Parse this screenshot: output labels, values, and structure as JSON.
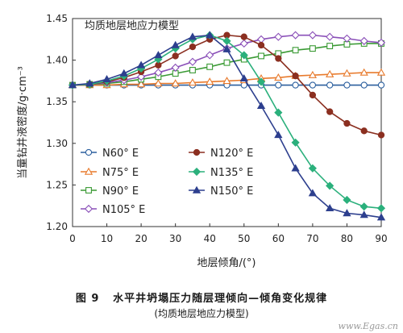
{
  "chart_data": {
    "type": "line",
    "title": "均质地层地应力模型",
    "xlabel": "地层倾角/(°)",
    "ylabel": "当量钻井液密度/g·cm⁻³",
    "xlim": [
      0,
      90
    ],
    "ylim": [
      1.2,
      1.45
    ],
    "xticks": [
      0,
      10,
      20,
      30,
      40,
      50,
      60,
      70,
      80,
      90
    ],
    "yticks": [
      1.2,
      1.25,
      1.3,
      1.35,
      1.4,
      1.45
    ],
    "ytick_labels": [
      "1.20",
      "1.25",
      "1.30",
      "1.35",
      "1.40",
      "1.45"
    ],
    "grid": false,
    "legend_position": "lower-left, two columns",
    "x": [
      0,
      5,
      10,
      15,
      20,
      25,
      30,
      35,
      40,
      45,
      50,
      55,
      60,
      65,
      70,
      75,
      80,
      85,
      90
    ],
    "series": [
      {
        "name": "N60° E",
        "color": "#2b5f9e",
        "marker": "circle-open",
        "values": [
          1.37,
          1.37,
          1.37,
          1.37,
          1.37,
          1.37,
          1.37,
          1.37,
          1.37,
          1.37,
          1.37,
          1.37,
          1.37,
          1.37,
          1.37,
          1.37,
          1.37,
          1.37,
          1.37
        ]
      },
      {
        "name": "N75° E",
        "color": "#e87a2c",
        "marker": "triangle-open",
        "values": [
          1.37,
          1.37,
          1.37,
          1.371,
          1.371,
          1.372,
          1.372,
          1.373,
          1.374,
          1.375,
          1.376,
          1.378,
          1.379,
          1.381,
          1.382,
          1.383,
          1.384,
          1.385,
          1.385
        ]
      },
      {
        "name": "N90° E",
        "color": "#3a9a34",
        "marker": "square-open",
        "values": [
          1.37,
          1.371,
          1.372,
          1.374,
          1.377,
          1.38,
          1.384,
          1.388,
          1.392,
          1.397,
          1.401,
          1.405,
          1.408,
          1.412,
          1.414,
          1.417,
          1.419,
          1.42,
          1.42
        ]
      },
      {
        "name": "N105° E",
        "color": "#8a4fb8",
        "marker": "diamond-open",
        "values": [
          1.37,
          1.371,
          1.373,
          1.376,
          1.38,
          1.385,
          1.391,
          1.398,
          1.406,
          1.414,
          1.42,
          1.425,
          1.428,
          1.43,
          1.43,
          1.428,
          1.426,
          1.423,
          1.421
        ]
      },
      {
        "name": "N120° E",
        "color": "#8b2f20",
        "marker": "circle-filled",
        "values": [
          1.37,
          1.371,
          1.374,
          1.379,
          1.386,
          1.394,
          1.405,
          1.416,
          1.425,
          1.43,
          1.428,
          1.418,
          1.402,
          1.381,
          1.358,
          1.338,
          1.324,
          1.315,
          1.31
        ]
      },
      {
        "name": "N135° E",
        "color": "#2bb07c",
        "marker": "diamond-filled",
        "values": [
          1.37,
          1.371,
          1.375,
          1.381,
          1.39,
          1.401,
          1.414,
          1.425,
          1.43,
          1.423,
          1.406,
          1.374,
          1.337,
          1.301,
          1.27,
          1.249,
          1.232,
          1.224,
          1.222
        ]
      },
      {
        "name": "N150° E",
        "color": "#2d3f8e",
        "marker": "triangle-filled",
        "values": [
          1.37,
          1.372,
          1.377,
          1.384,
          1.394,
          1.406,
          1.418,
          1.428,
          1.43,
          1.413,
          1.378,
          1.345,
          1.31,
          1.27,
          1.24,
          1.222,
          1.216,
          1.214,
          1.211
        ]
      }
    ]
  },
  "caption": {
    "figure_label": "图 9",
    "line1": "水平井坍塌压力随层理倾向—倾角变化规律",
    "line2": "(均质地层地应力模型)"
  },
  "watermark": "www.Egas.cn"
}
